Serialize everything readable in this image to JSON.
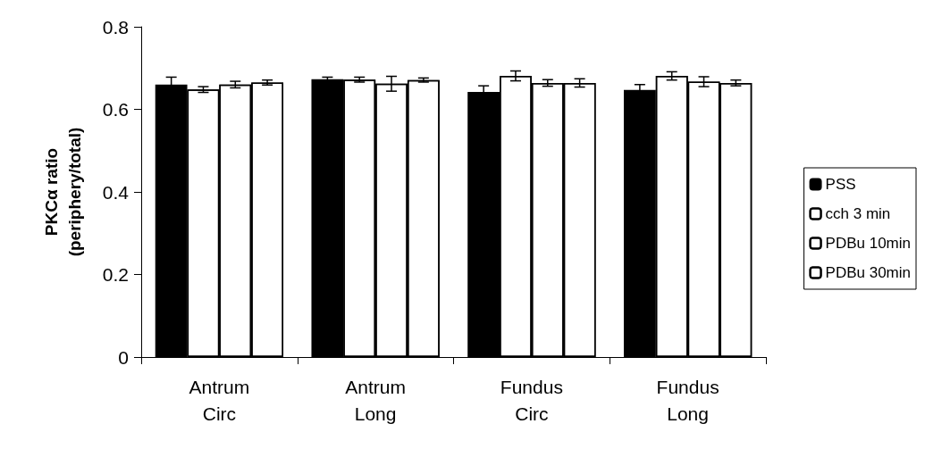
{
  "chart_data": {
    "type": "bar",
    "ylabel": "PKCα ratio\n(periphery/total)",
    "categories": [
      "Antrum\nCirc",
      "Antrum\nLong",
      "Fundus\nCirc",
      "Fundus\nLong"
    ],
    "series": [
      {
        "name": "PSS",
        "color": "#000000",
        "values": [
          0.66,
          0.673,
          0.642,
          0.647
        ],
        "errors": [
          0.018,
          0.005,
          0.015,
          0.013
        ]
      },
      {
        "name": "cch 3 min",
        "color": "#ffffff",
        "values": [
          0.648,
          0.672,
          0.681,
          0.681
        ],
        "errors": [
          0.007,
          0.006,
          0.012,
          0.01
        ]
      },
      {
        "name": "PDBu 10min",
        "color": "#ffffff",
        "values": [
          0.66,
          0.662,
          0.664,
          0.667
        ],
        "errors": [
          0.008,
          0.018,
          0.008,
          0.012
        ]
      },
      {
        "name": "PDBu 30min",
        "color": "#ffffff",
        "values": [
          0.665,
          0.671,
          0.664,
          0.664
        ],
        "errors": [
          0.006,
          0.005,
          0.01,
          0.007
        ]
      }
    ],
    "ylim": [
      0,
      0.8
    ],
    "yticks": [
      0,
      0.2,
      0.4,
      0.6,
      0.8
    ],
    "grid": false,
    "legend": "right"
  }
}
